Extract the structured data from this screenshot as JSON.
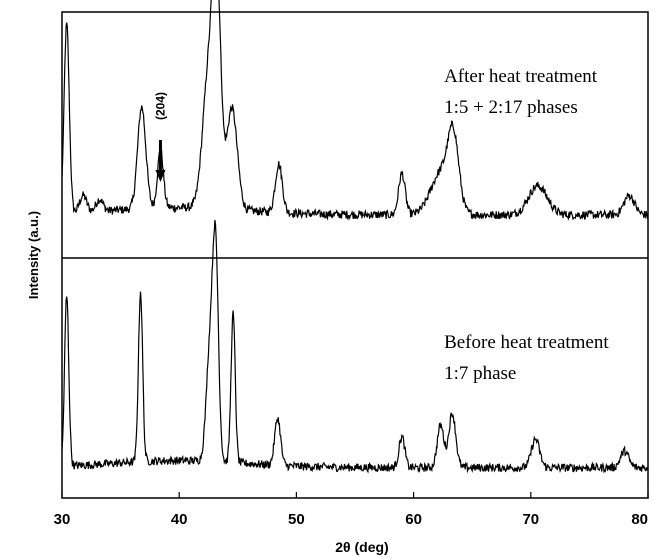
{
  "chart_data": {
    "type": "line",
    "xlabel": "2θ (deg)",
    "ylabel": "Intensity (a.u.)",
    "xlim": [
      30,
      80
    ],
    "x_ticks": [
      30,
      40,
      50,
      60,
      70,
      80
    ],
    "panels": [
      {
        "id": "top",
        "annotation_lines": [
          "After heat treatment",
          "1:5 + 2:17 phases"
        ],
        "peak_label": "(204)",
        "peak_label_x": 38.4,
        "baseline": 0.17,
        "peaks": [
          {
            "x": 30.4,
            "h": 0.78,
            "w": 0.22
          },
          {
            "x": 31.8,
            "h": 0.07,
            "w": 0.3
          },
          {
            "x": 33.2,
            "h": 0.05,
            "w": 0.3
          },
          {
            "x": 36.8,
            "h": 0.42,
            "w": 0.35
          },
          {
            "x": 38.4,
            "h": 0.24,
            "w": 0.25
          },
          {
            "x": 42.5,
            "h": 0.55,
            "w": 0.5
          },
          {
            "x": 43.2,
            "h": 0.88,
            "w": 0.35
          },
          {
            "x": 44.5,
            "h": 0.42,
            "w": 0.45
          },
          {
            "x": 48.5,
            "h": 0.2,
            "w": 0.3
          },
          {
            "x": 59.0,
            "h": 0.17,
            "w": 0.28
          },
          {
            "x": 62.4,
            "h": 0.18,
            "w": 0.9
          },
          {
            "x": 63.4,
            "h": 0.27,
            "w": 0.45
          },
          {
            "x": 70.6,
            "h": 0.12,
            "w": 0.8
          },
          {
            "x": 78.4,
            "h": 0.08,
            "w": 0.45
          }
        ]
      },
      {
        "id": "bottom",
        "annotation_lines": [
          "Before heat treatment",
          "1:7 phase"
        ],
        "baseline": 0.12,
        "peaks": [
          {
            "x": 30.4,
            "h": 0.72,
            "w": 0.18
          },
          {
            "x": 36.7,
            "h": 0.72,
            "w": 0.18
          },
          {
            "x": 42.6,
            "h": 0.45,
            "w": 0.3
          },
          {
            "x": 43.1,
            "h": 0.88,
            "w": 0.25
          },
          {
            "x": 44.6,
            "h": 0.63,
            "w": 0.18
          },
          {
            "x": 48.4,
            "h": 0.2,
            "w": 0.25
          },
          {
            "x": 59.0,
            "h": 0.13,
            "w": 0.25
          },
          {
            "x": 62.3,
            "h": 0.18,
            "w": 0.28
          },
          {
            "x": 63.3,
            "h": 0.23,
            "w": 0.3
          },
          {
            "x": 70.4,
            "h": 0.12,
            "w": 0.35
          },
          {
            "x": 78.0,
            "h": 0.07,
            "w": 0.35
          }
        ]
      }
    ],
    "colors": {
      "line": "#000000",
      "frame": "#000000",
      "background": "#ffffff"
    }
  }
}
